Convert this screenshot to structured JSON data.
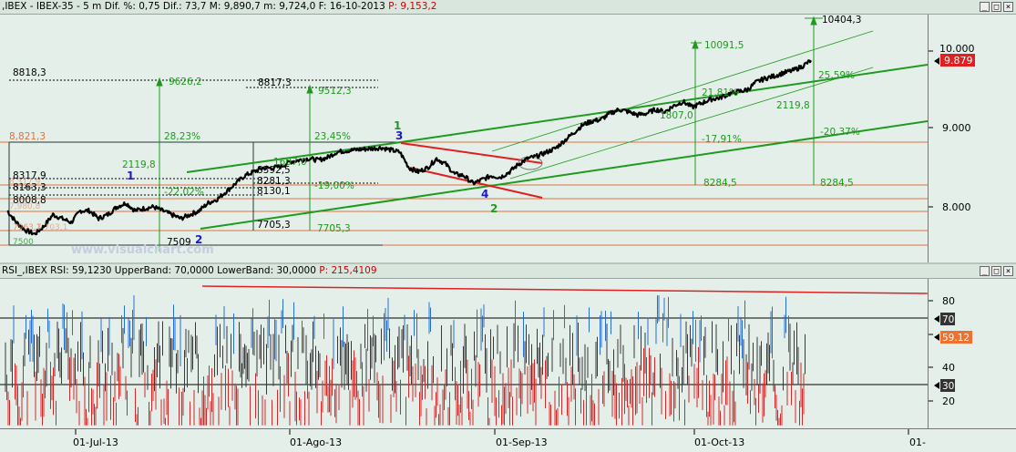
{
  "main_panel": {
    "header_text": ",IBEX - IBEX-35 -  5 m Dif. %: 0,75 Dif.: 73,7 M: 9,890,7 m: 9,724,0 F: 16-10-2013",
    "header_pval": "P: 9,153,2",
    "buttons": [
      "_",
      "□",
      "×"
    ],
    "watermark": "www.visualchart.com",
    "price_tag": "9.879",
    "colors": {
      "price_line": "#000000",
      "trend_green": "#1e9a1e",
      "channel_red": "#e02020",
      "level_orange": "#e07040",
      "wave_blue": "#1a1acc",
      "wave_green": "#1e9a1e",
      "tag_red": "#e02020"
    }
  },
  "rsi_panel": {
    "header_text": "RSI_,IBEX RSI: 59,1230 UpperBand: 70,0000 LowerBand: 30,0000",
    "header_pval": "P: 215,4109",
    "buttons": [
      "_",
      "□",
      "×"
    ],
    "tags": {
      "upper": "70",
      "value": "59.12",
      "lower": "30"
    }
  },
  "x_axis": {
    "labels": [
      "01-Jul-13",
      "01-Ago-13",
      "01-Sep-13",
      "01-Oct-13",
      "01-"
    ]
  },
  "chart_data": [
    {
      "type": "line",
      "name": "price",
      "y_ticks": [
        "10.000",
        "9.000",
        "8.000"
      ],
      "ylim": [
        7.5,
        10.5
      ],
      "x_range": [
        0,
        1
      ],
      "y_unit_note": "",
      "x": [
        0.0,
        0.01,
        0.02,
        0.03,
        0.04,
        0.05,
        0.06,
        0.07,
        0.08,
        0.09,
        0.1,
        0.11,
        0.12,
        0.13,
        0.14,
        0.15,
        0.16,
        0.17,
        0.18,
        0.19,
        0.2,
        0.21,
        0.22,
        0.23,
        0.24,
        0.25,
        0.26,
        0.27,
        0.28,
        0.29,
        0.3,
        0.31,
        0.32,
        0.33,
        0.34,
        0.35,
        0.36,
        0.37,
        0.38,
        0.39,
        0.4,
        0.41,
        0.42,
        0.43,
        0.44,
        0.45,
        0.46,
        0.47,
        0.48,
        0.49,
        0.5,
        0.51,
        0.52,
        0.53,
        0.54,
        0.55,
        0.56,
        0.57,
        0.58,
        0.59,
        0.6,
        0.61,
        0.62,
        0.63,
        0.64,
        0.65,
        0.66,
        0.67,
        0.68,
        0.69,
        0.7,
        0.71,
        0.72,
        0.73,
        0.74,
        0.75,
        0.76,
        0.77,
        0.78,
        0.79,
        0.8,
        0.81,
        0.82,
        0.83,
        0.84,
        0.85,
        0.86,
        0.87,
        0.88
      ],
      "values": [
        7.95,
        7.8,
        7.7,
        7.65,
        7.75,
        7.9,
        7.85,
        7.8,
        7.95,
        7.95,
        7.85,
        7.9,
        8.0,
        8.05,
        7.95,
        7.98,
        8.0,
        7.95,
        7.9,
        7.85,
        7.9,
        7.95,
        8.05,
        8.1,
        8.2,
        8.3,
        8.4,
        8.45,
        8.5,
        8.5,
        8.52,
        8.58,
        8.6,
        8.62,
        8.6,
        8.63,
        8.7,
        8.72,
        8.73,
        8.74,
        8.75,
        8.76,
        8.73,
        8.7,
        8.5,
        8.45,
        8.5,
        8.62,
        8.55,
        8.42,
        8.4,
        8.3,
        8.35,
        8.4,
        8.38,
        8.45,
        8.55,
        8.62,
        8.65,
        8.7,
        8.75,
        8.85,
        8.95,
        9.05,
        9.1,
        9.12,
        9.2,
        9.25,
        9.22,
        9.18,
        9.2,
        9.25,
        9.22,
        9.3,
        9.35,
        9.28,
        9.33,
        9.38,
        9.4,
        9.45,
        9.48,
        9.5,
        9.6,
        9.65,
        9.68,
        9.72,
        9.75,
        9.8,
        9.88
      ]
    },
    {
      "type": "annotations",
      "name": "levels",
      "labels": [
        {
          "text": "8818,3"
        },
        {
          "text": "9626,2"
        },
        {
          "text": "8817,3"
        },
        {
          "text": "9512,3"
        },
        {
          "text": "8,821,3"
        },
        {
          "text": "28,23%"
        },
        {
          "text": "23,45%"
        },
        {
          "text": "2119,8"
        },
        {
          "text": "8317,9"
        },
        {
          "text": "8163,3"
        },
        {
          "text": "8008,8"
        },
        {
          "text": "8392,5"
        },
        {
          "text": "8281,3"
        },
        {
          "text": "8130,1"
        },
        {
          "text": "-22,02%"
        },
        {
          "text": "-19,00%"
        },
        {
          "text": "1607,0"
        },
        {
          "text": "7705,3"
        },
        {
          "text": "7705,3"
        },
        {
          "text": "7509"
        },
        {
          "text": "7963,1"
        },
        {
          "text": "7500"
        },
        {
          "text": "10091,5"
        },
        {
          "text": "10404,3"
        },
        {
          "text": "21,81%"
        },
        {
          "text": "25,59%"
        },
        {
          "text": "1807,0"
        },
        {
          "text": "2119,8"
        },
        {
          "text": "-17,91%"
        },
        {
          "text": "-20,37%"
        },
        {
          "text": "8284,5"
        },
        {
          "text": "8284,5"
        },
        {
          "text": "8,317,9"
        },
        {
          "text": "7,980,8"
        },
        {
          "text": "7,703,1"
        },
        {
          "text": "1"
        },
        {
          "text": "2"
        },
        {
          "text": "3"
        },
        {
          "text": "4"
        },
        {
          "text": "1"
        },
        {
          "text": "2"
        }
      ]
    },
    {
      "type": "line",
      "name": "RSI",
      "y_ticks": [
        "80",
        "60",
        "40",
        "20"
      ],
      "ylim": [
        0,
        100
      ],
      "bands": [
        70,
        30
      ],
      "value": 59.123
    }
  ]
}
